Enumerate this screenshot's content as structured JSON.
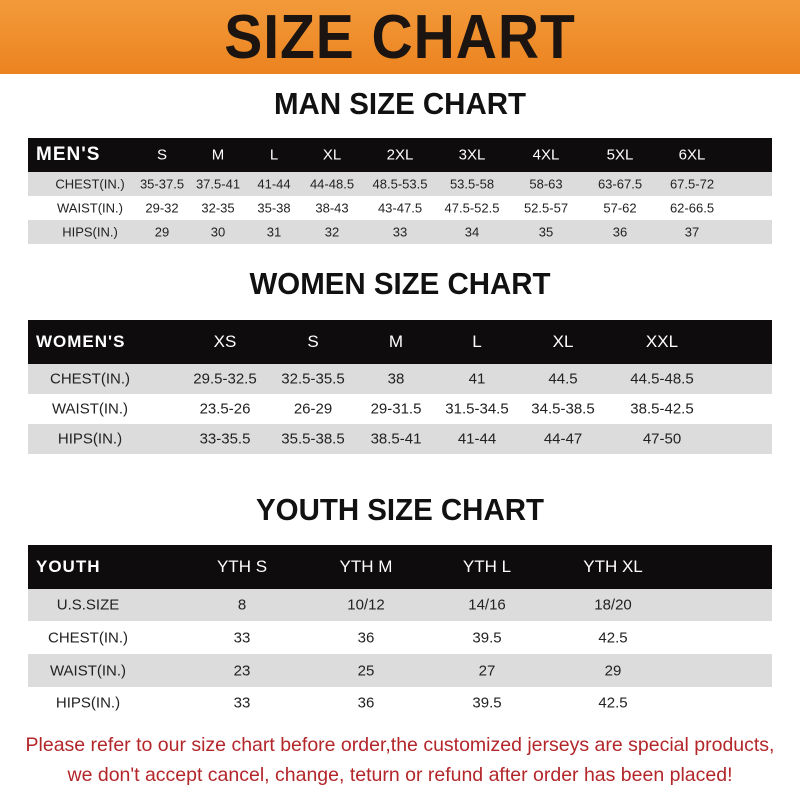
{
  "banner_title": "SIZE CHART",
  "men": {
    "title": "MAN SIZE CHART",
    "header": [
      "MEN'S",
      "S",
      "M",
      "L",
      "XL",
      "2XL",
      "3XL",
      "4XL",
      "5XL",
      "6XL"
    ],
    "rows": [
      [
        "CHEST(IN.)",
        "35-37.5",
        "37.5-41",
        "41-44",
        "44-48.5",
        "48.5-53.5",
        "53.5-58",
        "58-63",
        "63-67.5",
        "67.5-72"
      ],
      [
        "WAIST(IN.)",
        "29-32",
        "32-35",
        "35-38",
        "38-43",
        "43-47.5",
        "47.5-52.5",
        "52.5-57",
        "57-62",
        "62-66.5"
      ],
      [
        "HIPS(IN.)",
        "29",
        "30",
        "31",
        "32",
        "33",
        "34",
        "35",
        "36",
        "37"
      ]
    ]
  },
  "women": {
    "title": "WOMEN SIZE CHART",
    "header": [
      "WOMEN'S",
      "XS",
      "S",
      "M",
      "L",
      "XL",
      "XXL"
    ],
    "rows": [
      [
        "CHEST(IN.)",
        "29.5-32.5",
        "32.5-35.5",
        "38",
        "41",
        "44.5",
        "44.5-48.5"
      ],
      [
        "WAIST(IN.)",
        "23.5-26",
        "26-29",
        "29-31.5",
        "31.5-34.5",
        "34.5-38.5",
        "38.5-42.5"
      ],
      [
        "HIPS(IN.)",
        "33-35.5",
        "35.5-38.5",
        "38.5-41",
        "41-44",
        "44-47",
        "47-50"
      ]
    ]
  },
  "youth": {
    "title": "YOUTH SIZE CHART",
    "header": [
      "YOUTH",
      "YTH S",
      "YTH M",
      "YTH L",
      "YTH XL"
    ],
    "rows": [
      [
        "U.S.SIZE",
        "8",
        "10/12",
        "14/16",
        "18/20"
      ],
      [
        "CHEST(IN.)",
        "33",
        "36",
        "39.5",
        "42.5"
      ],
      [
        "WAIST(IN.)",
        "23",
        "25",
        "27",
        "29"
      ],
      [
        "HIPS(IN.)",
        "33",
        "36",
        "39.5",
        "42.5"
      ]
    ]
  },
  "footer": {
    "line1": "Please refer to our size chart before order,the customized jerseys are special products,",
    "line2": "we don't accept cancel, change, teturn or refund after order has been placed!"
  },
  "colors": {
    "banner": "#ec8320",
    "header_row": "#0e0c0c",
    "stripe": "#dcdcdc",
    "footer_text": "#b3262a"
  }
}
